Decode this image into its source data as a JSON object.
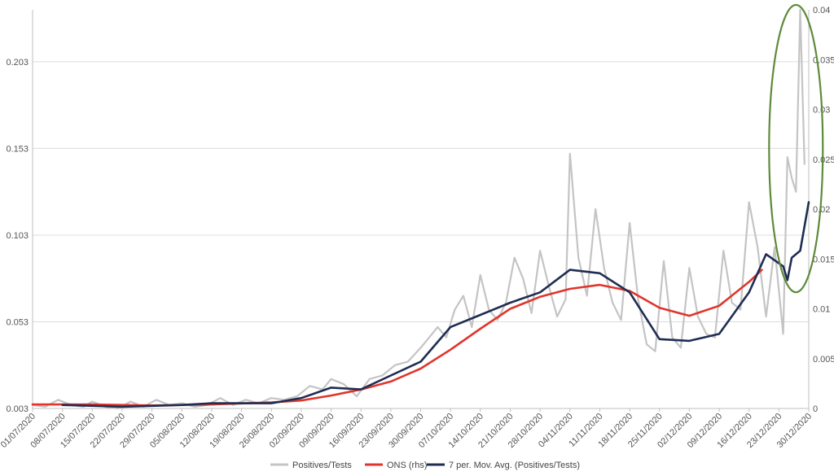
{
  "chart_data": {
    "type": "line",
    "left_axis": {
      "ticks": [
        "0.003",
        "0.053",
        "0.103",
        "0.153",
        "0.203"
      ],
      "range": [
        0.003,
        0.233
      ]
    },
    "right_axis": {
      "ticks": [
        "0",
        "0.005",
        "0.01",
        "0.015",
        "0.02",
        "0.025",
        "0.03",
        "0.035",
        "0.04"
      ],
      "range": [
        0,
        0.04
      ]
    },
    "x_axis": {
      "start_date": "01/07/2020",
      "end_date": "30/12/2020",
      "tick_labels": [
        "01/07/2020",
        "08/07/2020",
        "15/07/2020",
        "22/07/2020",
        "29/07/2020",
        "05/08/2020",
        "12/08/2020",
        "19/08/2020",
        "26/08/2020",
        "02/09/2020",
        "09/09/2020",
        "16/09/2020",
        "23/09/2020",
        "30/09/2020",
        "07/10/2020",
        "14/10/2020",
        "21/10/2020",
        "28/10/2020",
        "04/11/2020",
        "11/11/2020",
        "18/11/2020",
        "25/11/2020",
        "02/12/2020",
        "09/12/2020",
        "16/12/2020",
        "23/12/2020",
        "30/12/2020"
      ]
    },
    "grid": true,
    "legend_position": "bottom",
    "series": [
      {
        "name": "Positives/Tests",
        "axis": "left",
        "color": "#c4c4c4",
        "points": [
          [
            "01/07/2020",
            0.005
          ],
          [
            "04/07/2020",
            0.004
          ],
          [
            "07/07/2020",
            0.008
          ],
          [
            "10/07/2020",
            0.005
          ],
          [
            "13/07/2020",
            0.004
          ],
          [
            "15/07/2020",
            0.007
          ],
          [
            "18/07/2020",
            0.004
          ],
          [
            "21/07/2020",
            0.003
          ],
          [
            "24/07/2020",
            0.007
          ],
          [
            "27/07/2020",
            0.004
          ],
          [
            "30/07/2020",
            0.008
          ],
          [
            "02/08/2020",
            0.005
          ],
          [
            "05/08/2020",
            0.006
          ],
          [
            "08/08/2020",
            0.004
          ],
          [
            "11/08/2020",
            0.005
          ],
          [
            "14/08/2020",
            0.009
          ],
          [
            "17/08/2020",
            0.005
          ],
          [
            "20/08/2020",
            0.008
          ],
          [
            "23/08/2020",
            0.006
          ],
          [
            "26/08/2020",
            0.009
          ],
          [
            "29/08/2020",
            0.008
          ],
          [
            "01/09/2020",
            0.01
          ],
          [
            "04/09/2020",
            0.016
          ],
          [
            "07/09/2020",
            0.014
          ],
          [
            "09/09/2020",
            0.02
          ],
          [
            "12/09/2020",
            0.017
          ],
          [
            "15/09/2020",
            0.01
          ],
          [
            "18/09/2020",
            0.02
          ],
          [
            "21/09/2020",
            0.022
          ],
          [
            "24/09/2020",
            0.028
          ],
          [
            "27/09/2020",
            0.03
          ],
          [
            "30/09/2020",
            0.038
          ],
          [
            "02/10/2020",
            0.044
          ],
          [
            "04/10/2020",
            0.05
          ],
          [
            "06/10/2020",
            0.044
          ],
          [
            "08/10/2020",
            0.06
          ],
          [
            "10/10/2020",
            0.068
          ],
          [
            "12/10/2020",
            0.05
          ],
          [
            "14/10/2020",
            0.08
          ],
          [
            "16/10/2020",
            0.06
          ],
          [
            "18/10/2020",
            0.054
          ],
          [
            "20/10/2020",
            0.064
          ],
          [
            "22/10/2020",
            0.09
          ],
          [
            "24/10/2020",
            0.078
          ],
          [
            "26/10/2020",
            0.058
          ],
          [
            "28/10/2020",
            0.094
          ],
          [
            "30/10/2020",
            0.074
          ],
          [
            "01/11/2020",
            0.056
          ],
          [
            "03/11/2020",
            0.066
          ],
          [
            "04/11/2020",
            0.15
          ],
          [
            "06/11/2020",
            0.09
          ],
          [
            "08/11/2020",
            0.068
          ],
          [
            "10/11/2020",
            0.118
          ],
          [
            "12/11/2020",
            0.084
          ],
          [
            "14/11/2020",
            0.064
          ],
          [
            "16/11/2020",
            0.054
          ],
          [
            "18/11/2020",
            0.11
          ],
          [
            "20/11/2020",
            0.066
          ],
          [
            "22/11/2020",
            0.04
          ],
          [
            "24/11/2020",
            0.036
          ],
          [
            "26/11/2020",
            0.088
          ],
          [
            "28/11/2020",
            0.044
          ],
          [
            "30/11/2020",
            0.038
          ],
          [
            "02/12/2020",
            0.084
          ],
          [
            "04/12/2020",
            0.056
          ],
          [
            "06/12/2020",
            0.046
          ],
          [
            "08/12/2020",
            0.044
          ],
          [
            "10/12/2020",
            0.094
          ],
          [
            "12/12/2020",
            0.064
          ],
          [
            "14/12/2020",
            0.06
          ],
          [
            "16/12/2020",
            0.122
          ],
          [
            "18/12/2020",
            0.096
          ],
          [
            "20/12/2020",
            0.056
          ],
          [
            "22/12/2020",
            0.096
          ],
          [
            "24/12/2020",
            0.046
          ],
          [
            "25/12/2020",
            0.148
          ],
          [
            "26/12/2020",
            0.136
          ],
          [
            "27/12/2020",
            0.128
          ],
          [
            "28/12/2020",
            0.233
          ],
          [
            "29/12/2020",
            0.144
          ]
        ]
      },
      {
        "name": "ONS (rhs)",
        "axis": "right",
        "color": "#e0352b",
        "points": [
          [
            "01/07/2020",
            0.0004
          ],
          [
            "15/07/2020",
            0.0004
          ],
          [
            "29/07/2020",
            0.0003
          ],
          [
            "12/08/2020",
            0.0004
          ],
          [
            "26/08/2020",
            0.0006
          ],
          [
            "02/09/2020",
            0.0008
          ],
          [
            "09/09/2020",
            0.0013
          ],
          [
            "16/09/2020",
            0.0019
          ],
          [
            "23/09/2020",
            0.0027
          ],
          [
            "30/09/2020",
            0.004
          ],
          [
            "07/10/2020",
            0.0059
          ],
          [
            "14/10/2020",
            0.008
          ],
          [
            "21/10/2020",
            0.01
          ],
          [
            "28/10/2020",
            0.0112
          ],
          [
            "04/11/2020",
            0.012
          ],
          [
            "11/11/2020",
            0.0124
          ],
          [
            "18/11/2020",
            0.0118
          ],
          [
            "25/11/2020",
            0.0101
          ],
          [
            "02/12/2020",
            0.0093
          ],
          [
            "09/12/2020",
            0.0103
          ],
          [
            "16/12/2020",
            0.0127
          ],
          [
            "19/12/2020",
            0.0139
          ]
        ]
      },
      {
        "name": "7 per. Mov. Avg. (Positives/Tests)",
        "axis": "left",
        "color": "#1f2d52",
        "points": [
          [
            "08/07/2020",
            0.005
          ],
          [
            "22/07/2020",
            0.004
          ],
          [
            "05/08/2020",
            0.005
          ],
          [
            "12/08/2020",
            0.006
          ],
          [
            "26/08/2020",
            0.006
          ],
          [
            "02/09/2020",
            0.009
          ],
          [
            "09/09/2020",
            0.015
          ],
          [
            "16/09/2020",
            0.014
          ],
          [
            "23/09/2020",
            0.022
          ],
          [
            "30/09/2020",
            0.03
          ],
          [
            "07/10/2020",
            0.05
          ],
          [
            "14/10/2020",
            0.057
          ],
          [
            "21/10/2020",
            0.064
          ],
          [
            "28/10/2020",
            0.07
          ],
          [
            "04/11/2020",
            0.083
          ],
          [
            "11/11/2020",
            0.081
          ],
          [
            "18/11/2020",
            0.07
          ],
          [
            "25/11/2020",
            0.043
          ],
          [
            "02/12/2020",
            0.042
          ],
          [
            "09/12/2020",
            0.046
          ],
          [
            "16/12/2020",
            0.07
          ],
          [
            "20/12/2020",
            0.092
          ],
          [
            "24/12/2020",
            0.085
          ],
          [
            "25/12/2020",
            0.077
          ],
          [
            "26/12/2020",
            0.09
          ],
          [
            "28/12/2020",
            0.094
          ],
          [
            "30/12/2020",
            0.122
          ]
        ]
      }
    ],
    "annotations": [
      {
        "type": "ellipse",
        "color": "#5e8a3a",
        "x": "27/12/2020",
        "y_range": [
          0.071,
          0.233
        ]
      }
    ]
  }
}
